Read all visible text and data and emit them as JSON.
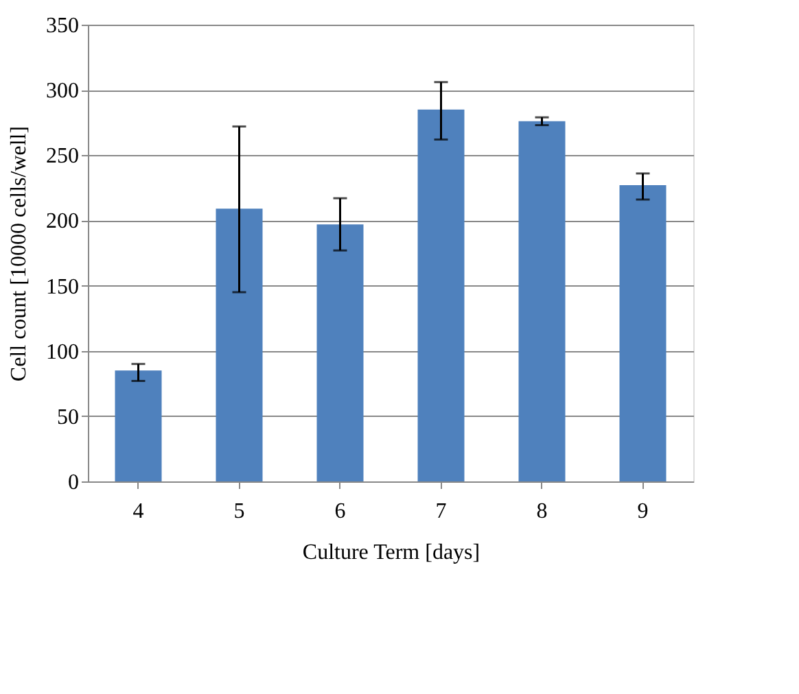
{
  "chart_data": {
    "type": "bar",
    "xlabel": "Culture Term [days]",
    "ylabel": "Cell count [10000 cells/well]",
    "categories": [
      "4",
      "5",
      "6",
      "7",
      "8",
      "9"
    ],
    "series": [
      {
        "color": "#4f81bd",
        "values": [
          85,
          209,
          197,
          285,
          276,
          227
        ],
        "errors": [
          [
            77,
            90
          ],
          [
            145,
            272
          ],
          [
            177,
            217
          ],
          [
            262,
            306
          ],
          [
            273,
            279
          ],
          [
            216,
            236
          ]
        ]
      }
    ],
    "ylim": [
      0,
      350
    ],
    "yticks": [
      0,
      50,
      100,
      150,
      200,
      250,
      300,
      350
    ],
    "grid": "y",
    "legend": false
  }
}
